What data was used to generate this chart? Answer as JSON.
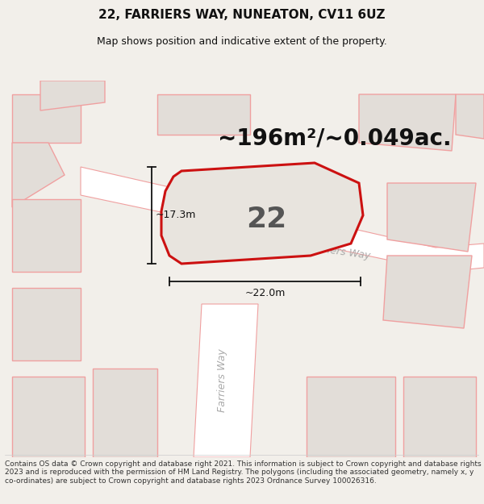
{
  "title": "22, FARRIERS WAY, NUNEATON, CV11 6UZ",
  "subtitle": "Map shows position and indicative extent of the property.",
  "area_text": "~196m²/~0.049ac.",
  "number_label": "22",
  "dim1_label": "~17.3m",
  "dim2_label": "~22.0m",
  "footer": "Contains OS data © Crown copyright and database right 2021. This information is subject to Crown copyright and database rights 2023 and is reproduced with the permission of HM Land Registry. The polygons (including the associated geometry, namely x, y co-ordinates) are subject to Crown copyright and database rights 2023 Ordnance Survey 100026316.",
  "bg_color": "#f2efea",
  "map_bg": "#f2efea",
  "building_fill": "#e2ddd8",
  "building_stroke": "#f0a0a0",
  "road_fill": "#ffffff",
  "road_stroke": "#f0a0a0",
  "road_text_color": "#aaaaaa",
  "plot_fill": "#e8e4de",
  "plot_stroke": "#cc1111",
  "dim_color": "#111111",
  "title_color": "#111111",
  "footer_color": "#333333",
  "title_fontsize": 11,
  "subtitle_fontsize": 9,
  "area_fontsize": 20,
  "number_fontsize": 26,
  "dim_fontsize": 9,
  "footer_fontsize": 6.5
}
